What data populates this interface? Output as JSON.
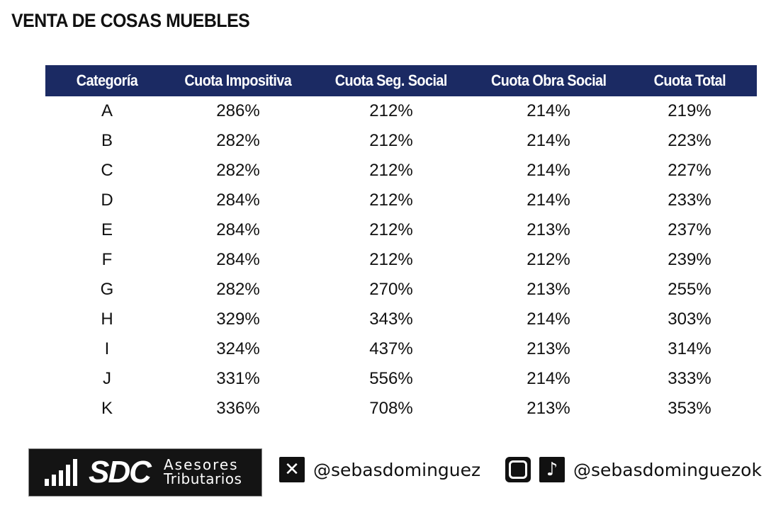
{
  "title": "VENTA DE COSAS MUEBLES",
  "table": {
    "headers": [
      "Categoría",
      "Cuota Impositiva",
      "Cuota Seg. Social",
      "Cuota Obra Social",
      "Cuota Total"
    ],
    "rows": [
      [
        "A",
        "286%",
        "212%",
        "214%",
        "219%"
      ],
      [
        "B",
        "282%",
        "212%",
        "214%",
        "223%"
      ],
      [
        "C",
        "282%",
        "212%",
        "214%",
        "227%"
      ],
      [
        "D",
        "284%",
        "212%",
        "214%",
        "233%"
      ],
      [
        "E",
        "284%",
        "212%",
        "213%",
        "237%"
      ],
      [
        "F",
        "284%",
        "212%",
        "212%",
        "239%"
      ],
      [
        "G",
        "282%",
        "270%",
        "213%",
        "255%"
      ],
      [
        "H",
        "329%",
        "343%",
        "214%",
        "303%"
      ],
      [
        "I",
        "324%",
        "437%",
        "213%",
        "314%"
      ],
      [
        "J",
        "331%",
        "556%",
        "214%",
        "333%"
      ],
      [
        "K",
        "336%",
        "708%",
        "213%",
        "353%"
      ]
    ]
  },
  "footer": {
    "logo": {
      "mark": "SDC",
      "line1": "Asesores",
      "line2": "Tributarios"
    },
    "x_handle": "@sebasdominguez",
    "ig_tiktok_handle": "@sebasdominguezok",
    "icons": [
      "x-logo-icon",
      "instagram-icon",
      "tiktok-icon"
    ]
  },
  "colors": {
    "header_bg": "#1b2a63",
    "header_text": "#ffffff",
    "text": "#111111"
  }
}
